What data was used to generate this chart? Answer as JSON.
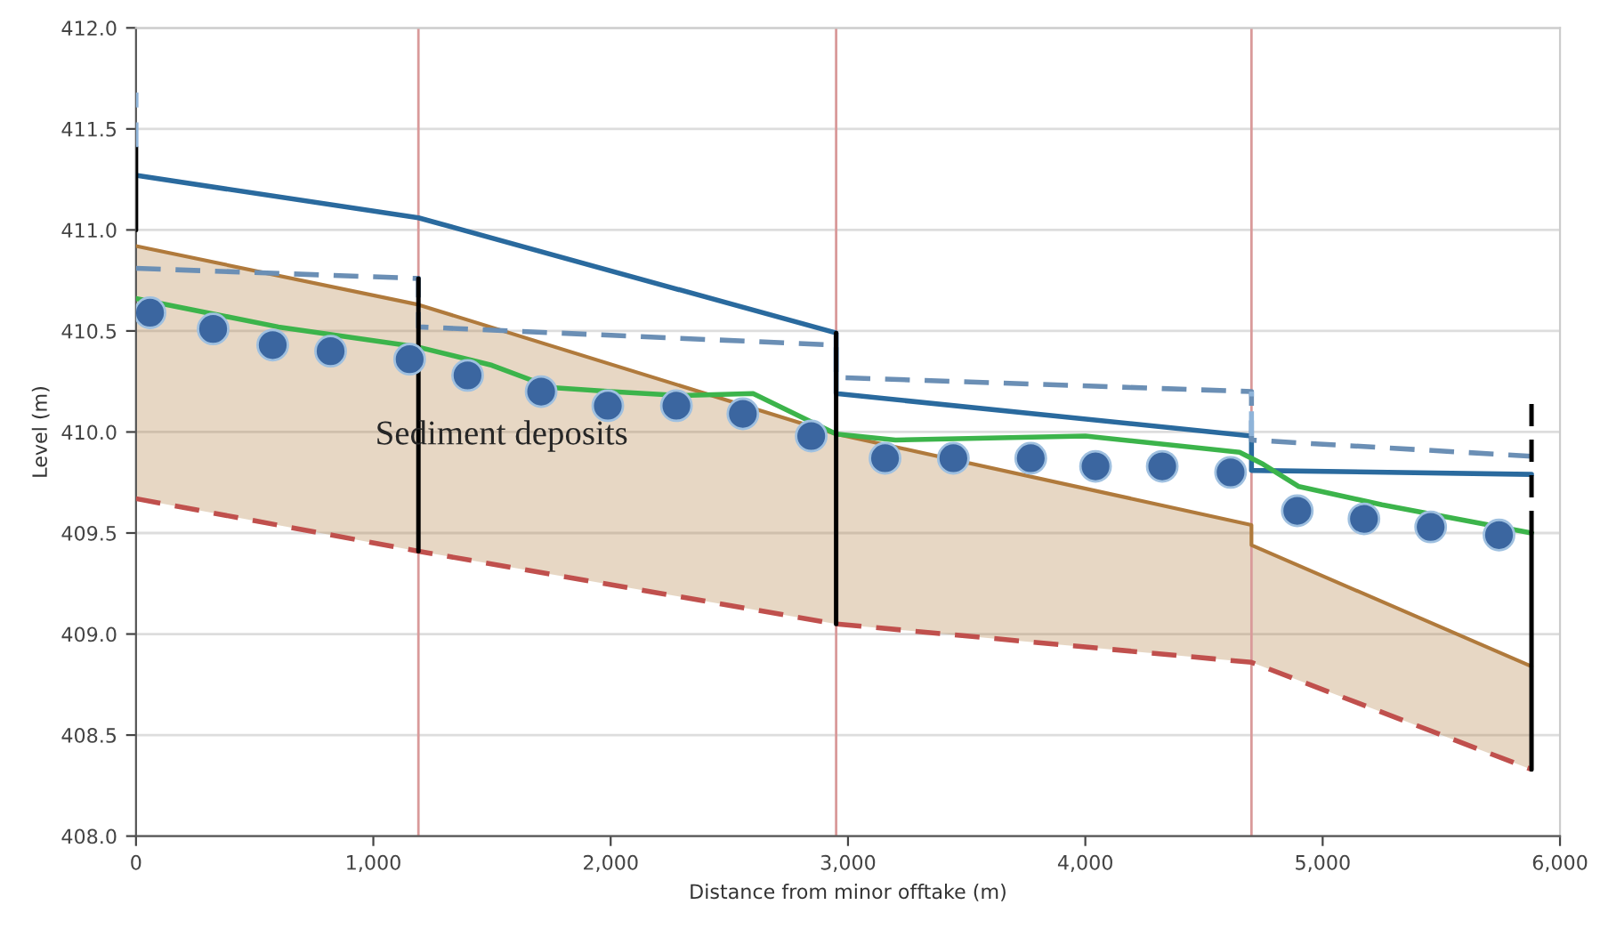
{
  "chart_data": {
    "type": "line",
    "xlabel": "Distance from minor offtake (m)",
    "ylabel": "Level (m)",
    "xlim": [
      0,
      6000
    ],
    "ylim": [
      408,
      412
    ],
    "xticks": [
      0,
      {
        "value": 1000,
        "label": "1,000"
      },
      {
        "value": 2000,
        "label": "2,000"
      },
      {
        "value": 3000,
        "label": "3,000"
      },
      {
        "value": 4000,
        "label": "4,000"
      },
      {
        "value": 5000,
        "label": "5,000"
      },
      {
        "value": 6000,
        "label": "6,000"
      }
    ],
    "yticks": [
      {
        "value": 408,
        "label": "408.0"
      },
      {
        "value": 408.5,
        "label": "408.5"
      },
      {
        "value": 409,
        "label": "409.0"
      },
      {
        "value": 409.5,
        "label": "409.5"
      },
      {
        "value": 410,
        "label": "410.0"
      },
      {
        "value": 410.5,
        "label": "410.5"
      },
      {
        "value": 411,
        "label": "411.0"
      },
      {
        "value": 411.5,
        "label": "411.5"
      },
      {
        "value": 412,
        "label": "412.0"
      }
    ],
    "grid": "y",
    "legend": false,
    "ref_lines": [
      {
        "axis": "x",
        "value": 1190,
        "color": "#d99a9a"
      },
      {
        "axis": "x",
        "value": 2950,
        "color": "#d99a9a"
      },
      {
        "axis": "x",
        "value": 4700,
        "color": "#d99a9a"
      }
    ],
    "annotations": [
      "Sediment deposits"
    ],
    "series": [
      {
        "type": "line",
        "color": "#b07a3c",
        "x": [
          0,
          1190,
          2950,
          4700,
          4700,
          5880
        ],
        "values": [
          410.92,
          410.63,
          409.99,
          409.54,
          409.44,
          408.84
        ],
        "lower": [
          409.67,
          409.41,
          409.05,
          408.86,
          408.86,
          408.33
        ],
        "upper": [
          410.92,
          410.63,
          409.99,
          409.54,
          409.44,
          408.84
        ]
      },
      {
        "type": "line",
        "color": "#c0504d",
        "line_style": "dashed",
        "x": [
          0,
          1190,
          2950,
          4700,
          5880
        ],
        "values": [
          409.67,
          409.41,
          409.05,
          408.86,
          408.33
        ]
      },
      {
        "type": "line",
        "color": "#2a6a9e",
        "x": [
          0,
          1190,
          2950,
          2950,
          4700,
          4700,
          5880
        ],
        "values": [
          411.27,
          411.06,
          410.49,
          410.19,
          409.98,
          409.81,
          409.79
        ]
      },
      {
        "type": "line",
        "color": "#6b8fb5",
        "line_style": "dashed",
        "x": [
          0,
          1190,
          1190,
          2950,
          2950,
          4700,
          4700,
          5880
        ],
        "values": [
          410.81,
          410.76,
          410.52,
          410.43,
          410.27,
          410.2,
          409.96,
          409.88
        ]
      },
      {
        "color": "#3cb44b",
        "x": [
          0,
          600,
          1190,
          1500,
          1750,
          2000,
          2300,
          2600,
          2950,
          3200,
          4000,
          4650,
          4750,
          4900,
          5250,
          5880
        ],
        "values": [
          410.66,
          410.52,
          410.42,
          410.33,
          410.22,
          410.2,
          410.18,
          410.19,
          409.99,
          409.96,
          409.98,
          409.9,
          409.84,
          409.73,
          409.64,
          409.5
        ]
      },
      {
        "type": "scatter",
        "color": "#3b66a0",
        "marker": "circle",
        "x": [
          59,
          325,
          576,
          820,
          1153,
          1397,
          1707,
          1988,
          2277,
          2557,
          2845,
          3156,
          3444,
          3770,
          4043,
          4324,
          4612,
          4893,
          5174,
          5455,
          5743
        ],
        "values": [
          410.59,
          410.51,
          410.43,
          410.4,
          410.36,
          410.28,
          410.2,
          410.13,
          410.13,
          410.09,
          409.98,
          409.87,
          409.87,
          409.87,
          409.83,
          409.83,
          409.8,
          409.61,
          409.57,
          409.53,
          409.49
        ]
      },
      {
        "type": "line",
        "color": "#000000",
        "x": [
          0,
          0
        ],
        "values": [
          411.0,
          411.41
        ]
      },
      {
        "type": "line",
        "color": "#000000",
        "x": [
          1190,
          1190
        ],
        "values": [
          409.41,
          410.76
        ]
      },
      {
        "type": "line",
        "color": "#000000",
        "x": [
          2950,
          2950
        ],
        "values": [
          409.05,
          410.49
        ]
      },
      {
        "type": "line",
        "color": "#000000",
        "x": [
          5880,
          5880
        ],
        "values": [
          408.33,
          409.5
        ]
      },
      {
        "type": "line",
        "color": "#000000",
        "line_style": "dashed",
        "x": [
          5880,
          5880
        ],
        "values": [
          409.5,
          410.15
        ]
      },
      {
        "type": "line",
        "color": "#8fb4d9",
        "line_style": "dashed",
        "x": [
          0,
          0
        ],
        "values": [
          411.41,
          411.68
        ]
      },
      {
        "type": "line",
        "color": "#8fb4d9",
        "line_style": "dashed",
        "x": [
          4700,
          4700
        ],
        "values": [
          409.98,
          410.2
        ]
      }
    ]
  }
}
